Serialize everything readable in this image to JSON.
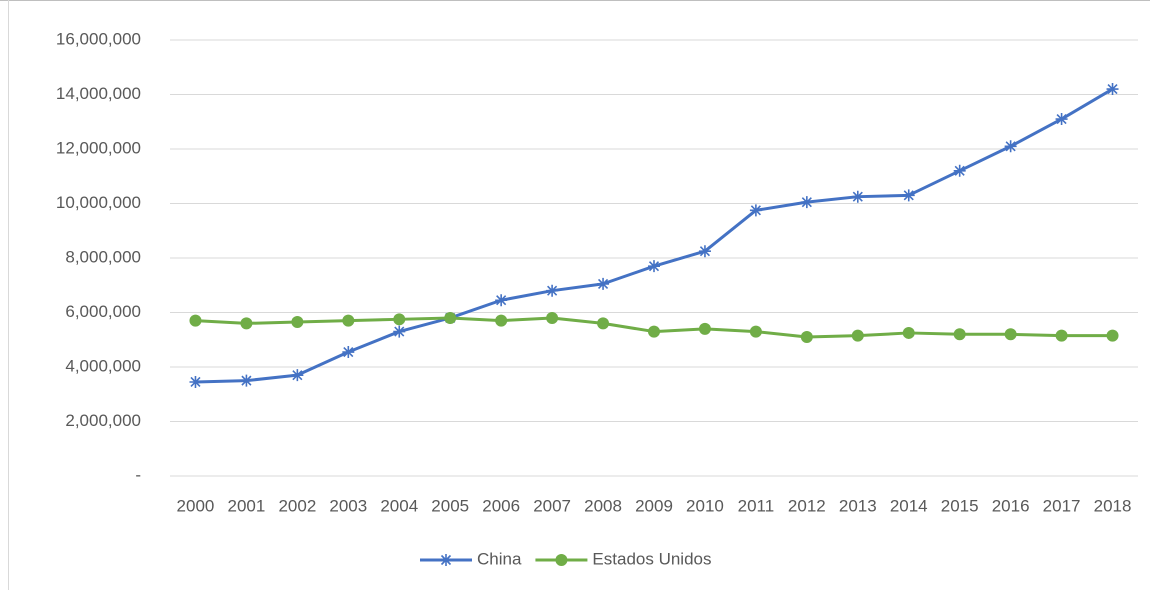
{
  "chart_data": {
    "type": "line",
    "categories": [
      "2000",
      "2001",
      "2002",
      "2003",
      "2004",
      "2005",
      "2006",
      "2007",
      "2008",
      "2009",
      "2010",
      "2011",
      "2012",
      "2013",
      "2014",
      "2015",
      "2016",
      "2017",
      "2018"
    ],
    "series": [
      {
        "name": "China",
        "color": "#4472c4",
        "marker": "asterisk",
        "values": [
          3450000,
          3500000,
          3700000,
          4550000,
          5300000,
          5800000,
          6450000,
          6800000,
          7050000,
          7700000,
          8250000,
          9750000,
          10050000,
          10250000,
          10300000,
          11200000,
          12100000,
          13100000,
          14200000
        ]
      },
      {
        "name": "Estados Unidos",
        "color": "#70ad47",
        "marker": "circle",
        "values": [
          5700000,
          5600000,
          5650000,
          5700000,
          5750000,
          5800000,
          5700000,
          5800000,
          5600000,
          5300000,
          5400000,
          5300000,
          5100000,
          5150000,
          5250000,
          5200000,
          5200000,
          5150000,
          5150000
        ]
      }
    ],
    "ylim": [
      0,
      16000000
    ],
    "yticks": [
      {
        "value": 0,
        "label": "-"
      },
      {
        "value": 2000000,
        "label": "2,000,000"
      },
      {
        "value": 4000000,
        "label": "4,000,000"
      },
      {
        "value": 6000000,
        "label": "6,000,000"
      },
      {
        "value": 8000000,
        "label": "8,000,000"
      },
      {
        "value": 10000000,
        "label": "10,000,000"
      },
      {
        "value": 12000000,
        "label": "12,000,000"
      },
      {
        "value": 14000000,
        "label": "14,000,000"
      },
      {
        "value": 16000000,
        "label": "16,000,000"
      }
    ],
    "grid": true,
    "legend": "bottom"
  }
}
